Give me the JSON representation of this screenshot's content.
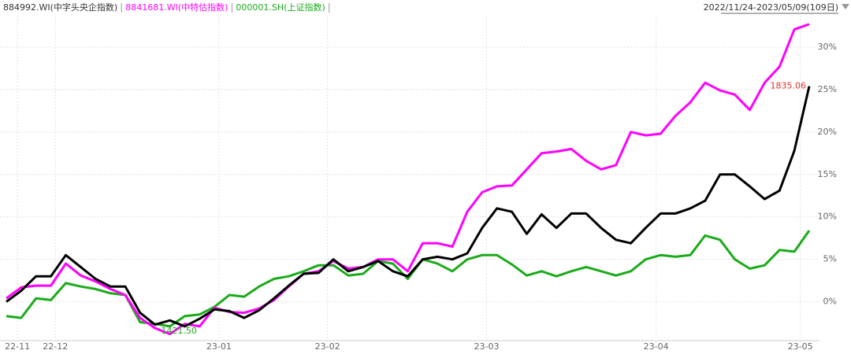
{
  "chart_data": {
    "type": "line",
    "range": "2022/11/24-2023/05/09(109日)",
    "xlim": [
      0,
      54
    ],
    "xticks": [
      {
        "value": 0.75,
        "label": "22-11"
      },
      {
        "value": 3.3,
        "label": "22-12"
      },
      {
        "value": 14.3,
        "label": "23-01"
      },
      {
        "value": 21.6,
        "label": "23-02"
      },
      {
        "value": 32.3,
        "label": "23-03"
      },
      {
        "value": 43.7,
        "label": "23-04"
      },
      {
        "value": 53.4,
        "label": "23-05"
      }
    ],
    "ylim": [
      -4.3,
      33.7
    ],
    "yticks": [
      {
        "value": 0,
        "label": "0%"
      },
      {
        "value": 5,
        "label": "5%"
      },
      {
        "value": 10,
        "label": "10%"
      },
      {
        "value": 15,
        "label": "15%"
      },
      {
        "value": 20,
        "label": "20%"
      },
      {
        "value": 25,
        "label": "25%"
      },
      {
        "value": 30,
        "label": "30%"
      }
    ],
    "grid": true,
    "last_label": "1835.06",
    "min_label": "1421.50",
    "series": [
      {
        "name": "884992.WI(中字头央企指数)",
        "color": "#000000",
        "text_color": "#333333",
        "values": [
          0,
          1.3,
          3.0,
          3.0,
          5.5,
          4.1,
          2.7,
          1.8,
          1.8,
          -1.3,
          -2.7,
          -2.2,
          -2.9,
          -2.0,
          -0.9,
          -1.1,
          -1.9,
          -1.0,
          0.4,
          1.9,
          3.3,
          3.4,
          5.0,
          3.6,
          4.1,
          4.8,
          3.6,
          3.0,
          5.0,
          5.3,
          5.0,
          5.7,
          8.7,
          11.0,
          10.6,
          8.0,
          10.3,
          8.7,
          10.4,
          10.4,
          8.7,
          7.3,
          6.9,
          8.7,
          10.4,
          10.4,
          11.0,
          11.9,
          15.0,
          15.0,
          13.6,
          12.1,
          13.1,
          17.8,
          25.4
        ]
      },
      {
        "name": "8841681.WI(中特估指数)",
        "color": "#ff00ff",
        "text_color": "#ff00ff",
        "values": [
          0.4,
          1.7,
          1.9,
          1.9,
          4.5,
          3.1,
          2.4,
          1.5,
          0.8,
          -1.9,
          -3.1,
          -3.8,
          -2.6,
          -2.9,
          -0.7,
          -1.2,
          -1.3,
          -0.8,
          0.2,
          1.8,
          3.3,
          3.6,
          4.8,
          3.9,
          4.1,
          5.0,
          5.0,
          3.6,
          6.9,
          6.9,
          6.5,
          10.6,
          12.9,
          13.6,
          13.7,
          15.6,
          17.5,
          17.7,
          18.0,
          16.6,
          15.6,
          16.1,
          20.0,
          19.6,
          19.8,
          21.9,
          23.5,
          25.8,
          24.9,
          24.4,
          22.6,
          25.8,
          27.7,
          32.1,
          32.7
        ]
      },
      {
        "name": "000001.SH(上证指数)",
        "color": "#1aab1a",
        "text_color": "#1aab1a",
        "values": [
          -1.7,
          -1.9,
          0.4,
          0.2,
          2.2,
          1.8,
          1.5,
          1.0,
          0.8,
          -2.4,
          -2.6,
          -2.9,
          -1.7,
          -1.5,
          -0.6,
          0.8,
          0.6,
          1.8,
          2.7,
          3.0,
          3.6,
          4.3,
          4.3,
          3.1,
          3.3,
          4.8,
          4.5,
          2.7,
          5.0,
          4.5,
          3.6,
          5.0,
          5.5,
          5.5,
          4.4,
          3.1,
          3.6,
          3.0,
          3.6,
          4.1,
          3.6,
          3.1,
          3.6,
          5.0,
          5.5,
          5.3,
          5.5,
          7.8,
          7.3,
          5.0,
          3.9,
          4.3,
          6.1,
          5.9,
          8.4
        ]
      }
    ]
  }
}
